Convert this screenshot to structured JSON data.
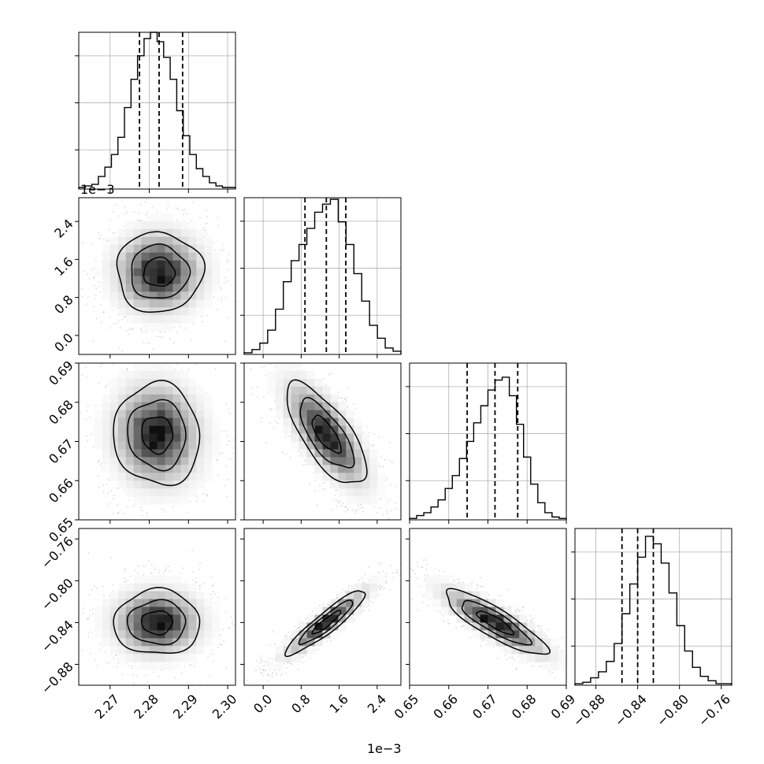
{
  "chart_data": {
    "type": "corner",
    "grid": true,
    "parameters": [
      {
        "range": [
          2.262,
          2.302
        ],
        "ticks": [
          "2.27",
          "2.28",
          "2.29",
          "2.30"
        ],
        "tick_values": [
          2.27,
          2.28,
          2.29,
          2.3
        ],
        "scale_label": "",
        "quantiles": [
          2.2775,
          2.2825,
          2.2885
        ],
        "marginal_fraction": 1.0
      },
      {
        "range": [
          -0.4,
          2.9
        ],
        "ticks": [
          "0.0",
          "0.8",
          "1.6",
          "2.4"
        ],
        "tick_values": [
          0.0,
          0.8,
          1.6,
          2.4
        ],
        "scale_label": "1e−3",
        "quantiles": [
          0.88,
          1.33,
          1.74
        ],
        "marginal_fraction": 0.99
      },
      {
        "range": [
          0.65,
          0.69
        ],
        "ticks": [
          "0.65",
          "0.66",
          "0.67",
          "0.68",
          "0.69"
        ],
        "tick_values": [
          0.65,
          0.66,
          0.67,
          0.68,
          0.69
        ],
        "scale_label": "",
        "quantiles": [
          0.6647,
          0.6718,
          0.6776
        ],
        "marginal_fraction": 0.91
      },
      {
        "range": [
          -0.9,
          -0.75
        ],
        "ticks": [
          "−0.88",
          "−0.84",
          "−0.80",
          "−0.76"
        ],
        "tick_values": [
          -0.88,
          -0.84,
          -0.8,
          -0.76
        ],
        "scale_label": "",
        "quantiles": [
          -0.855,
          -0.84,
          -0.825
        ],
        "marginal_fraction": 0.95
      }
    ],
    "histograms": [
      [
        1,
        2,
        3,
        8,
        14,
        22,
        33,
        52,
        70,
        85,
        96,
        100,
        94,
        84,
        70,
        50,
        34,
        22,
        13,
        8,
        4,
        2,
        1,
        1
      ],
      [
        1,
        3,
        7,
        15,
        28,
        45,
        58,
        68,
        78,
        88,
        93,
        96,
        82,
        68,
        50,
        33,
        18,
        10,
        4,
        2
      ],
      [
        1,
        3,
        5,
        9,
        14,
        22,
        31,
        43,
        55,
        68,
        80,
        91,
        98,
        100,
        87,
        67,
        44,
        25,
        12,
        5,
        2,
        1
      ],
      [
        1,
        2,
        5,
        9,
        16,
        28,
        48,
        68,
        86,
        100,
        95,
        82,
        62,
        40,
        23,
        12,
        6,
        3,
        1,
        1
      ]
    ],
    "pairs": [
      {
        "row": 1,
        "col": 0,
        "center": [
          2.2825,
          1.33
        ],
        "sigma": [
          0.0055,
          0.42
        ],
        "rho": 0.0
      },
      {
        "row": 2,
        "col": 0,
        "center": [
          2.282,
          0.6718
        ],
        "sigma": [
          0.0055,
          0.0065
        ],
        "rho": -0.05
      },
      {
        "row": 2,
        "col": 1,
        "center": [
          1.33,
          0.6718
        ],
        "sigma": [
          0.42,
          0.0065
        ],
        "rho": -0.72
      },
      {
        "row": 3,
        "col": 0,
        "center": [
          2.282,
          -0.84
        ],
        "sigma": [
          0.0055,
          0.0155
        ],
        "rho": 0.0
      },
      {
        "row": 3,
        "col": 1,
        "center": [
          1.33,
          -0.84
        ],
        "sigma": [
          0.42,
          0.0155
        ],
        "rho": 0.92
      },
      {
        "row": 3,
        "col": 2,
        "center": [
          0.6718,
          -0.84
        ],
        "sigma": [
          0.0065,
          0.0155
        ],
        "rho": -0.86
      }
    ]
  }
}
